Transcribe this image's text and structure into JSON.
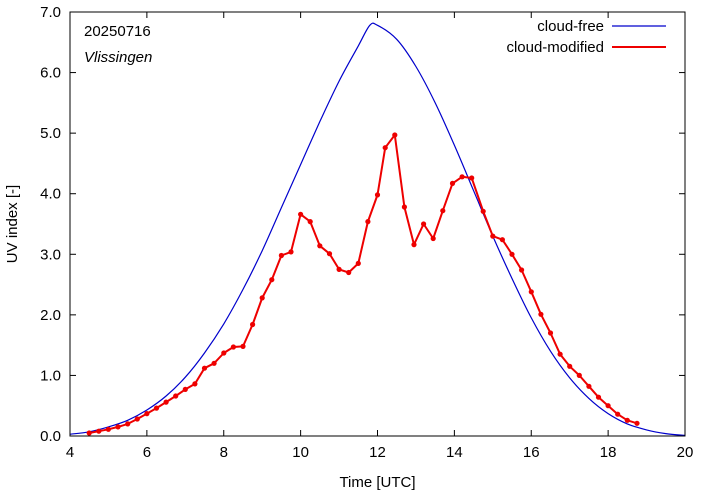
{
  "chart_data": {
    "type": "line",
    "annotations": {
      "date": "20250716",
      "station": "Vlissingen"
    },
    "xlabel": "Time  [UTC]",
    "ylabel": "UV index  [-]",
    "xlim": [
      4,
      20
    ],
    "ylim": [
      0,
      7
    ],
    "xticks": [
      "4",
      "6",
      "8",
      "10",
      "12",
      "14",
      "16",
      "18",
      "20"
    ],
    "yticks": [
      "0.0",
      "1.0",
      "2.0",
      "3.0",
      "4.0",
      "5.0",
      "6.0",
      "7.0"
    ],
    "legend_position": "top-right",
    "grid": false,
    "series": [
      {
        "name": "cloud-free",
        "color": "#0000cc",
        "markers": false,
        "x": [
          4.0,
          4.5,
          5.0,
          5.5,
          6.0,
          6.5,
          7.0,
          7.5,
          8.0,
          8.5,
          9.0,
          9.5,
          10.0,
          10.5,
          11.0,
          11.5,
          11.8,
          12.0,
          12.5,
          13.0,
          13.5,
          14.0,
          14.5,
          15.0,
          15.5,
          16.0,
          16.5,
          17.0,
          17.5,
          18.0,
          18.5,
          19.0,
          19.5,
          20.0
        ],
        "y": [
          0.03,
          0.07,
          0.15,
          0.26,
          0.43,
          0.66,
          0.97,
          1.37,
          1.85,
          2.42,
          3.06,
          3.77,
          4.48,
          5.19,
          5.86,
          6.44,
          6.78,
          6.78,
          6.55,
          6.1,
          5.5,
          4.8,
          4.05,
          3.3,
          2.6,
          1.95,
          1.4,
          0.96,
          0.62,
          0.37,
          0.2,
          0.1,
          0.04,
          0.01
        ]
      },
      {
        "name": "cloud-modified",
        "color": "#ee0000",
        "markers": true,
        "x": [
          4.5,
          4.75,
          5.0,
          5.25,
          5.5,
          5.75,
          6.0,
          6.25,
          6.5,
          6.75,
          7.0,
          7.25,
          7.5,
          7.75,
          8.0,
          8.25,
          8.5,
          8.75,
          9.0,
          9.25,
          9.5,
          9.75,
          10.0,
          10.25,
          10.5,
          10.75,
          11.0,
          11.25,
          11.5,
          11.75,
          12.0,
          12.2,
          12.45,
          12.7,
          12.95,
          13.2,
          13.45,
          13.7,
          13.95,
          14.2,
          14.45,
          14.75,
          15.0,
          15.25,
          15.5,
          15.75,
          16.0,
          16.25,
          16.5,
          16.75,
          17.0,
          17.25,
          17.5,
          17.75,
          18.0,
          18.25,
          18.5,
          18.75
        ],
        "y": [
          0.05,
          0.08,
          0.11,
          0.15,
          0.2,
          0.28,
          0.37,
          0.46,
          0.56,
          0.66,
          0.77,
          0.86,
          1.12,
          1.2,
          1.37,
          1.47,
          1.48,
          1.84,
          2.28,
          2.58,
          2.98,
          3.04,
          3.66,
          3.54,
          3.14,
          3.01,
          2.75,
          2.7,
          2.85,
          3.54,
          3.98,
          4.76,
          4.97,
          3.78,
          3.16,
          3.5,
          3.26,
          3.72,
          4.17,
          4.28,
          4.26,
          3.71,
          3.3,
          3.24,
          3.0,
          2.74,
          2.38,
          2.01,
          1.7,
          1.35,
          1.15,
          1.0,
          0.82,
          0.64,
          0.5,
          0.36,
          0.26,
          0.21
        ]
      }
    ]
  }
}
